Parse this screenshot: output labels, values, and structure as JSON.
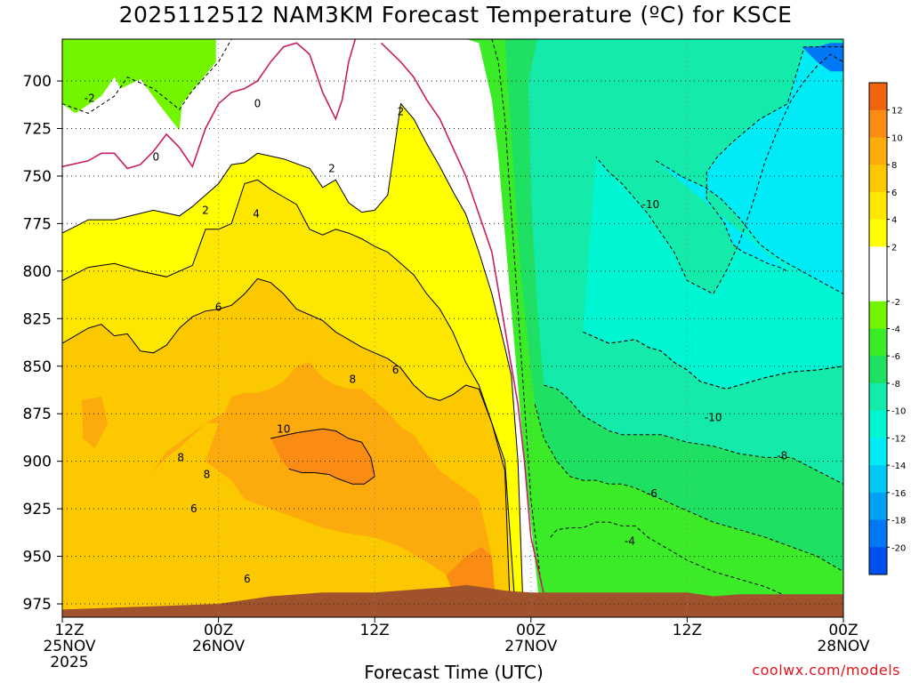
{
  "chart_data": {
    "type": "contour",
    "title": "2025112512 NAM3KM Forecast Temperature (ºC) for KSCE",
    "xlabel": "Forecast Time (UTC)",
    "ylabel": "",
    "credit": "coolwx.com/models",
    "x_ticks": [
      {
        "hour": 0,
        "line1": "12Z",
        "line2": "25NOV",
        "line3": "2025"
      },
      {
        "hour": 12,
        "line1": "00Z",
        "line2": "26NOV",
        "line3": ""
      },
      {
        "hour": 24,
        "line1": "12Z",
        "line2": "",
        "line3": ""
      },
      {
        "hour": 36,
        "line1": "00Z",
        "line2": "27NOV",
        "line3": ""
      },
      {
        "hour": 48,
        "line1": "12Z",
        "line2": "",
        "line3": ""
      },
      {
        "hour": 60,
        "line1": "00Z",
        "line2": "28NOV",
        "line3": ""
      }
    ],
    "xlim_hours": [
      0,
      60
    ],
    "y_ticks": [
      700,
      725,
      750,
      775,
      800,
      825,
      850,
      875,
      900,
      925,
      950,
      975
    ],
    "ylim_hpa": [
      678,
      982
    ],
    "grid": true,
    "colorbar": {
      "placement": "right",
      "levels": [
        14,
        12,
        10,
        8,
        6,
        4,
        2,
        0,
        -2,
        -4,
        -6,
        -8,
        -10,
        -12,
        -14,
        -16,
        -18,
        -20,
        -22
      ],
      "labels": [
        12,
        10,
        8,
        6,
        4,
        2,
        -2,
        -4,
        -6,
        -8,
        -10,
        -12,
        -14,
        -16,
        -18,
        -20
      ],
      "colors": [
        "#f06410",
        "#fa8c14",
        "#fcaa0c",
        "#fcc800",
        "#fde600",
        "#ffff00",
        "#ffffff",
        "#ffffff",
        "#73f500",
        "#3ceb28",
        "#1ee164",
        "#14ebaa",
        "#00f5d2",
        "#00ebf5",
        "#00c8f5",
        "#00a0f5",
        "#0078f5",
        "#0050f0"
      ]
    },
    "contour_labels": [
      {
        "value": "-2",
        "hour": 2.1,
        "hpa": 709
      },
      {
        "value": "0",
        "hour": 7.2,
        "hpa": 740
      },
      {
        "value": "0",
        "hour": 15.0,
        "hpa": 712
      },
      {
        "value": "2",
        "hour": 11.0,
        "hpa": 768
      },
      {
        "value": "2",
        "hour": 20.7,
        "hpa": 746
      },
      {
        "value": "2",
        "hour": 26.0,
        "hpa": 716
      },
      {
        "value": "4",
        "hour": 14.9,
        "hpa": 770
      },
      {
        "value": "6",
        "hour": 12.0,
        "hpa": 819
      },
      {
        "value": "6",
        "hour": 25.6,
        "hpa": 852
      },
      {
        "value": "6",
        "hour": 10.1,
        "hpa": 925
      },
      {
        "value": "6",
        "hour": 14.2,
        "hpa": 962
      },
      {
        "value": "8",
        "hour": 22.3,
        "hpa": 857
      },
      {
        "value": "8",
        "hour": 9.1,
        "hpa": 898
      },
      {
        "value": "8",
        "hour": 11.1,
        "hpa": 907
      },
      {
        "value": "10",
        "hour": 17.0,
        "hpa": 883
      },
      {
        "value": "-10",
        "hour": 45.2,
        "hpa": 765
      },
      {
        "value": "-10",
        "hour": 50.0,
        "hpa": 877
      },
      {
        "value": "-8",
        "hour": 55.3,
        "hpa": 897
      },
      {
        "value": "-6",
        "hour": 45.3,
        "hpa": 917
      },
      {
        "value": "-4",
        "hour": 43.6,
        "hpa": 942
      }
    ],
    "regions": [
      {
        "name": "green-cold-top-left",
        "color": "#73f500",
        "value": "-4 to -2",
        "hours": [
          0,
          1,
          3,
          4,
          4.5,
          6,
          7.5,
          9,
          9.2,
          10,
          11.8,
          11.8,
          0
        ],
        "hpa": [
          712,
          717,
          708,
          698,
          704,
          699,
          713,
          726,
          712,
          705,
          690,
          678,
          678
        ]
      },
      {
        "name": "yellow-warm-layer",
        "color": "#ffff00",
        "value": "2 to 4",
        "hours": [
          0,
          2,
          4,
          7,
          9,
          10,
          12,
          13,
          14,
          15,
          17,
          19,
          20,
          21,
          22,
          23,
          24,
          25,
          26,
          27,
          28,
          29,
          30,
          31,
          32,
          33,
          33.5,
          34,
          34.5,
          35,
          35.4,
          0
        ],
        "hpa": [
          780,
          773,
          773,
          768,
          771,
          766,
          754,
          744,
          743,
          738,
          741,
          746,
          756,
          752,
          764,
          769,
          768,
          760,
          712,
          720,
          733,
          745,
          758,
          770,
          790,
          812,
          826,
          840,
          855,
          900,
          978,
          978
        ]
      },
      {
        "name": "orange-4-6",
        "color": "#fde600",
        "value": "4 to 6",
        "hours": [
          0,
          2,
          4,
          6,
          8,
          10,
          11,
          12,
          13,
          14,
          15,
          16,
          17,
          18,
          19,
          20,
          21,
          22,
          23,
          24,
          25,
          26,
          27,
          28,
          29,
          30,
          31,
          32,
          33,
          34,
          34.8,
          0
        ],
        "hpa": [
          805,
          798,
          796,
          800,
          803,
          797,
          778,
          778,
          775,
          754,
          752,
          757,
          761,
          765,
          778,
          781,
          778,
          780,
          783,
          787,
          790,
          796,
          802,
          812,
          820,
          832,
          848,
          860,
          880,
          900,
          978,
          978
        ]
      },
      {
        "name": "orange-6-8",
        "color": "#fcc800",
        "value": "6 to 8",
        "hours": [
          0,
          2,
          3,
          4,
          5,
          6,
          7,
          8,
          9,
          10,
          11,
          12,
          13,
          14,
          15,
          16,
          17,
          18,
          19,
          20,
          21,
          22,
          23,
          24,
          25,
          26,
          27,
          28,
          29,
          30,
          31,
          32,
          33,
          34,
          34.4,
          0
        ],
        "hpa": [
          838,
          830,
          828,
          834,
          833,
          842,
          843,
          839,
          830,
          824,
          821,
          820,
          818,
          812,
          804,
          806,
          812,
          820,
          823,
          826,
          832,
          836,
          840,
          843,
          846,
          851,
          860,
          866,
          868,
          865,
          860,
          862,
          880,
          905,
          978,
          978
        ]
      },
      {
        "name": "orange-8-10",
        "color": "#fcaa0c",
        "value": "8 to 10",
        "hours": [
          1.5,
          3,
          3.5,
          2.5,
          1.6,
          1.5,
          7,
          8,
          9,
          11,
          12.5,
          13,
          14,
          15,
          16,
          17,
          18,
          19,
          20,
          21,
          22,
          23,
          24,
          25,
          26,
          27,
          28,
          29,
          30,
          31,
          32,
          33,
          32,
          30,
          28,
          26,
          24,
          22,
          20,
          18,
          16,
          14,
          13,
          12,
          11,
          11.5,
          12,
          11,
          10,
          9,
          8,
          7
        ],
        "hpa": [
          868,
          866,
          880,
          893,
          888,
          868,
          905,
          898,
          893,
          880,
          874,
          866,
          864,
          864,
          862,
          858,
          850,
          848,
          856,
          860,
          862,
          862,
          868,
          874,
          882,
          886,
          896,
          905,
          910,
          915,
          920,
          950,
          968,
          962,
          953,
          945,
          940,
          938,
          935,
          930,
          925,
          920,
          910,
          905,
          900,
          890,
          880,
          880,
          885,
          890,
          895,
          905
        ]
      },
      {
        "name": "orange-10-12",
        "color": "#fa8c14",
        "value": "10 to 12",
        "hours": [
          16,
          18,
          20,
          21,
          22,
          23,
          23.7,
          24,
          23.2,
          22.3,
          21.1,
          20.5,
          19.4,
          18.4,
          17.4,
          16.9
        ],
        "hpa": [
          888,
          885,
          883,
          884,
          888,
          890,
          898,
          908,
          912,
          912,
          909,
          907,
          906,
          906,
          904,
          900
        ]
      },
      {
        "name": "orange-10-12-lower",
        "color": "#fa8c14",
        "value": "10 to 12",
        "hours": [
          29.5,
          31,
          32.2,
          33,
          33.3,
          30.5
        ],
        "hpa": [
          960,
          950,
          945,
          950,
          975,
          978
        ]
      },
      {
        "name": "teal-cold-layer",
        "color": "#00f5d2",
        "value": "-12 to -10",
        "hours": [
          40,
          42,
          44,
          45,
          46,
          47,
          48,
          49,
          50,
          51,
          52,
          54,
          56,
          58,
          60,
          60,
          59,
          58,
          57,
          56,
          55,
          54,
          53,
          52,
          51,
          50,
          48,
          47,
          46,
          45,
          44,
          43,
          42,
          41
        ],
        "hpa": [
          832,
          838,
          836,
          840,
          842,
          848,
          852,
          858,
          860,
          862,
          860,
          856,
          853,
          852,
          850,
          690,
          686,
          692,
          700,
          710,
          725,
          742,
          765,
          785,
          800,
          812,
          805,
          790,
          780,
          770,
          762,
          754,
          748,
          740
        ]
      },
      {
        "name": "cyan-very-cold",
        "color": "#00ebf5",
        "value": "-14 to -12",
        "hours": [
          45.6,
          46.6,
          47.5,
          49.4,
          50.6,
          52,
          53.6,
          55.2,
          56.8,
          58.4,
          60,
          60,
          57,
          55.7,
          53.6,
          51.5,
          50.3,
          49.5,
          49.5,
          50.8,
          51.5,
          52.3,
          53,
          54.2,
          55.1,
          55.7
        ],
        "hpa": [
          742,
          746,
          750,
          756,
          762,
          772,
          786,
          794,
          800,
          806,
          812,
          682,
          682,
          712,
          720,
          732,
          740,
          748,
          762,
          774,
          786,
          790,
          792,
          796,
          798,
          800
        ]
      },
      {
        "name": "blue-coldest",
        "color": "#0078f5",
        "value": "-18 to -16",
        "hours": [
          56.8,
          58,
          59,
          60,
          60,
          59,
          58
        ],
        "hpa": [
          682,
          690,
          695,
          695,
          680,
          680,
          682
        ]
      }
    ],
    "contours": [
      {
        "value": -2,
        "style": "dashed",
        "hours": [
          0,
          2,
          4,
          5,
          7,
          9,
          10,
          12,
          13,
          13.2,
          14,
          15,
          16,
          17,
          18,
          19,
          20,
          21,
          22,
          23,
          24,
          25,
          26,
          27,
          28,
          29,
          30,
          31,
          32,
          33,
          33.5,
          34,
          34.5,
          35,
          35.5,
          36,
          36.7,
          37.2
        ],
        "hpa": [
          712,
          717,
          708,
          698,
          704,
          715,
          705,
          690,
          678,
          678,
          678,
          678,
          678,
          678,
          678,
          678,
          678,
          678,
          678,
          678,
          678,
          678,
          678,
          678,
          678,
          678,
          678,
          678,
          678,
          678,
          690,
          720,
          770,
          820,
          870,
          920,
          960,
          978
        ]
      },
      {
        "value": 0,
        "style": "solid",
        "color": "#c81e64",
        "hours": [
          0,
          2,
          3,
          4,
          5,
          6,
          7,
          8,
          9,
          10,
          11,
          12,
          13,
          14,
          15,
          16,
          17,
          18,
          19,
          20,
          21,
          21.5,
          22,
          22.5
        ],
        "hpa": [
          745,
          742,
          738,
          738,
          746,
          744,
          737,
          728,
          735,
          745,
          725,
          712,
          706,
          704,
          700,
          690,
          682,
          680,
          686,
          706,
          720,
          710,
          690,
          678
        ]
      },
      {
        "value": 0,
        "style": "solid",
        "color": "#c81e64",
        "hours": [
          24.5,
          26,
          27,
          28,
          29,
          30,
          31,
          32,
          33,
          33.5,
          34,
          34.5,
          35,
          35.5,
          36,
          37,
          38
        ],
        "hpa": [
          680,
          690,
          698,
          710,
          720,
          735,
          750,
          770,
          790,
          810,
          830,
          850,
          870,
          900,
          940,
          970,
          982
        ]
      },
      {
        "value": -4,
        "style": "dashed",
        "hours": [
          37.5,
          38,
          39,
          40,
          41,
          42,
          43,
          44,
          45,
          46,
          48,
          50,
          52,
          54,
          56,
          58,
          60
        ],
        "hpa": [
          940,
          936,
          935,
          935,
          932,
          932,
          934,
          934,
          940,
          944,
          952,
          958,
          962,
          966,
          972,
          978,
          978
        ]
      },
      {
        "value": -6,
        "style": "dashed",
        "hours": [
          36.3,
          37,
          38,
          39,
          40,
          41,
          42,
          43,
          44,
          45,
          46,
          48,
          50,
          52,
          54,
          56,
          58,
          60
        ],
        "hpa": [
          870,
          888,
          900,
          908,
          910,
          910,
          912,
          912,
          914,
          917,
          920,
          926,
          932,
          936,
          940,
          945,
          950,
          958
        ]
      },
      {
        "value": -8,
        "style": "dashed",
        "hours": [
          37,
          38,
          39,
          40,
          41,
          42,
          43,
          44,
          45,
          46,
          48,
          50,
          52,
          54,
          56,
          58,
          60
        ],
        "hpa": [
          860,
          862,
          868,
          876,
          880,
          884,
          886,
          886,
          886,
          886,
          890,
          892,
          896,
          898,
          898,
          905,
          912
        ]
      },
      {
        "value": -10,
        "style": "dashed",
        "hours": [
          40,
          42,
          44,
          45,
          46,
          47,
          48,
          49,
          50,
          51,
          52,
          54,
          56,
          58,
          60
        ],
        "hpa": [
          832,
          838,
          836,
          840,
          842,
          848,
          852,
          858,
          860,
          862,
          860,
          856,
          853,
          852,
          850
        ]
      }
    ],
    "terrain": {
      "color": "#a0522d",
      "note": "surface below ~965-978 hPa",
      "hours": [
        0,
        4,
        8,
        12,
        16,
        20,
        24,
        26,
        28,
        30,
        31,
        32,
        34,
        36,
        40,
        44,
        48,
        50,
        52,
        56,
        60
      ],
      "hpa": [
        978,
        977,
        976,
        975,
        971,
        969,
        969,
        968,
        967,
        966,
        965,
        966,
        968,
        969,
        969,
        969,
        969,
        971,
        970,
        970,
        970
      ]
    }
  }
}
